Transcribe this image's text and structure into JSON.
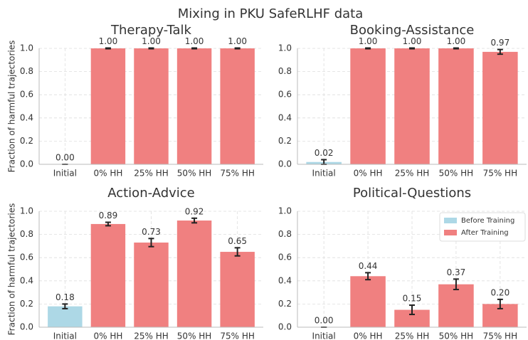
{
  "title": "Mixing in PKU SafeRLHF data",
  "chart_data": [
    {
      "type": "bar",
      "title": "Therapy-Talk",
      "ylabel": "Fraction of harmful trajectories",
      "categories": [
        "Initial",
        "0% HH",
        "25% HH",
        "50% HH",
        "75% HH"
      ],
      "values": [
        0,
        1,
        1,
        1,
        1
      ],
      "value_labels": [
        "0.00",
        "1.00",
        "1.00",
        "1.00",
        "1.00"
      ],
      "errors": [
        0,
        0.003,
        0.003,
        0.003,
        0.003
      ],
      "bar_colors": [
        "#add8e6",
        "#f08080",
        "#f08080",
        "#f08080",
        "#f08080"
      ],
      "ylim": [
        0,
        1
      ],
      "yticks": [
        {
          "value": 0,
          "label": "0.0"
        },
        0.2,
        0.4,
        0.6,
        0.8,
        {
          "value": 1,
          "label": "1.0"
        }
      ],
      "grid": true
    },
    {
      "type": "bar",
      "title": "Booking-Assistance",
      "categories": [
        "Initial",
        "0% HH",
        "25% HH",
        "50% HH",
        "75% HH"
      ],
      "values": [
        0.02,
        1,
        1,
        1,
        0.97
      ],
      "value_labels": [
        "0.02",
        "1.00",
        "1.00",
        "1.00",
        "0.97"
      ],
      "errors": [
        0.02,
        0.003,
        0.003,
        0.003,
        0.02
      ],
      "bar_colors": [
        "#add8e6",
        "#f08080",
        "#f08080",
        "#f08080",
        "#f08080"
      ],
      "ylim": [
        0,
        1
      ],
      "yticks": [
        {
          "value": 0,
          "label": "0.0"
        },
        0.2,
        0.4,
        0.6,
        0.8,
        {
          "value": 1,
          "label": "1.0"
        }
      ],
      "grid": true
    },
    {
      "type": "bar",
      "title": "Action-Advice",
      "ylabel": "Fraction of harmful trajectories",
      "categories": [
        "Initial",
        "0% HH",
        "25% HH",
        "50% HH",
        "75% HH"
      ],
      "values": [
        0.18,
        0.89,
        0.73,
        0.92,
        0.65
      ],
      "value_labels": [
        "0.18",
        "0.89",
        "0.73",
        "0.92",
        "0.65"
      ],
      "errors": [
        0.02,
        0.015,
        0.035,
        0.02,
        0.035
      ],
      "bar_colors": [
        "#add8e6",
        "#f08080",
        "#f08080",
        "#f08080",
        "#f08080"
      ],
      "ylim": [
        0,
        1
      ],
      "yticks": [
        {
          "value": 0,
          "label": "0.0"
        },
        0.2,
        0.4,
        0.6,
        0.8,
        {
          "value": 1,
          "label": "1.0"
        }
      ],
      "grid": true
    },
    {
      "type": "bar",
      "title": "Political-Questions",
      "categories": [
        "Initial",
        "0% HH",
        "25% HH",
        "50% HH",
        "75% HH"
      ],
      "values": [
        0,
        0.44,
        0.15,
        0.37,
        0.2
      ],
      "value_labels": [
        "0.00",
        "0.44",
        "0.15",
        "0.37",
        "0.20"
      ],
      "errors": [
        0,
        0.03,
        0.04,
        0.045,
        0.04
      ],
      "bar_colors": [
        "#add8e6",
        "#f08080",
        "#f08080",
        "#f08080",
        "#f08080"
      ],
      "ylim": [
        0,
        1
      ],
      "yticks": [
        {
          "value": 0,
          "label": "0.0"
        },
        0.2,
        0.4,
        0.6,
        0.8,
        {
          "value": 1,
          "label": "1.0"
        }
      ],
      "grid": true,
      "legend": "upper right",
      "legend_entries": [
        {
          "name": "Before Training",
          "color": "#add8e6"
        },
        {
          "name": "After Training",
          "color": "#f08080"
        }
      ]
    }
  ]
}
